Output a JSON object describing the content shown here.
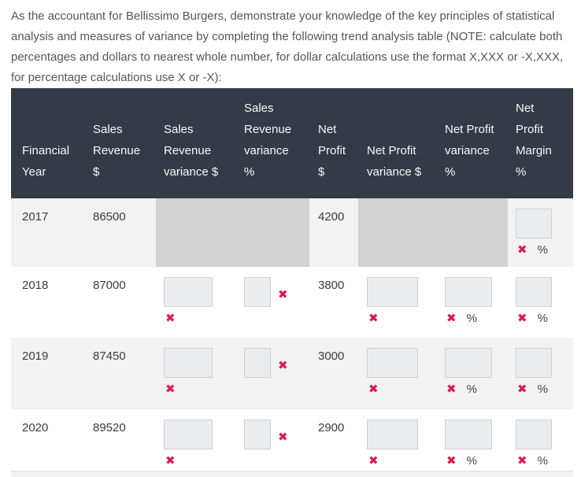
{
  "intro": {
    "text": "As the accountant for Bellissimo Burgers, demonstrate your knowledge of the key principles of statistical analysis and measures of variance by completing the following trend analysis table (NOTE: calculate both percentages and dollars to nearest whole number, for dollar calculations use the format X,XXX or -X,XXX, for percentage calculations use X or -X):"
  },
  "table": {
    "columns": [
      {
        "label": "Financial Year"
      },
      {
        "label": "Sales Revenue $"
      },
      {
        "label": "Sales Revenue variance $"
      },
      {
        "label": "Sales Revenue variance %"
      },
      {
        "label": "Net Profit $"
      },
      {
        "label": "Net Profit variance $"
      },
      {
        "label": "Net Profit variance %"
      },
      {
        "label": "Net Profit Margin %"
      }
    ],
    "rows": [
      {
        "year": "2017",
        "sales_revenue": "86500",
        "net_profit": "4200"
      },
      {
        "year": "2018",
        "sales_revenue": "87000",
        "net_profit": "3800"
      },
      {
        "year": "2019",
        "sales_revenue": "87450",
        "net_profit": "3000"
      },
      {
        "year": "2020",
        "sales_revenue": "89520",
        "net_profit": "2900"
      }
    ]
  },
  "marks": {
    "incorrect": "✖",
    "percent": "%"
  },
  "colors": {
    "header_bg": "#343b46",
    "row_alt_bg": "#f2f2f2",
    "disabled_cell_bg": "#d2d2d2",
    "input_bg": "#e9edf0",
    "input_border": "#c9d1d7",
    "incorrect_mark": "#e0194d"
  }
}
